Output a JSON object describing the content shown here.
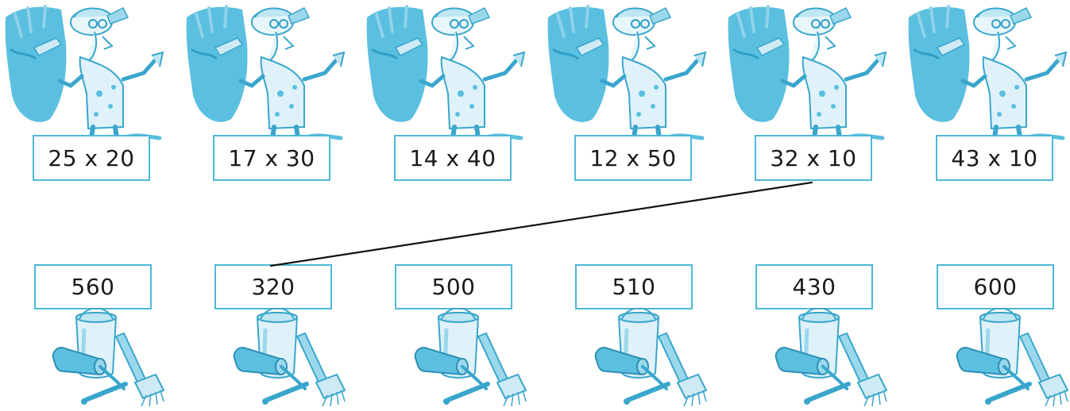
{
  "expressions": [
    "25 x 20",
    "17 x 30",
    "14 x 40",
    "12 x 50",
    "32 x 10",
    "43 x 10"
  ],
  "answers": [
    "560",
    "320",
    "500",
    "510",
    "430",
    "600"
  ],
  "colors": {
    "box_border": "#4fb8d8",
    "illustration": "#5bbfdf",
    "illustration_light": "#cdeaf5",
    "line": "#111111",
    "text": "#1a1a1a"
  },
  "icons": {
    "top_row": "painter-icon",
    "bottom_row": "cleaning-kit-icon"
  }
}
